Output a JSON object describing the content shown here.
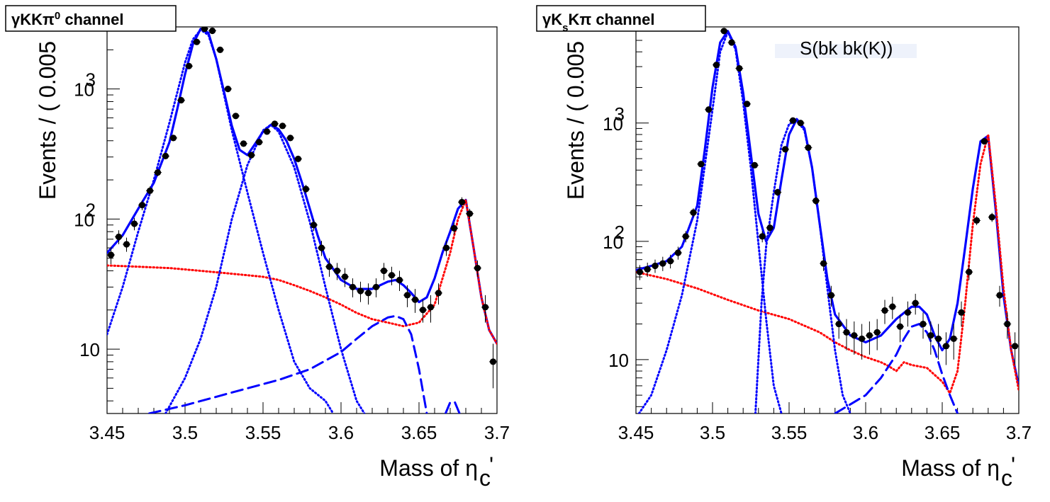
{
  "chart_data": [
    {
      "type": "scatter",
      "title": "γKKπ⁰ channel",
      "title_parts": {
        "prefix": "γKKπ",
        "sup": "0",
        "suffix": " channel"
      },
      "xlabel": "Mass of η",
      "xlabel_sub": "c",
      "xlabel_suffix": "'",
      "ylabel": "Events / ( 0.005",
      "x_ticks": [
        "3.45",
        "3.5",
        "3.55",
        "3.6",
        "3.65",
        "3.7"
      ],
      "y_ticks": [
        {
          "value": 10,
          "label": "10",
          "sup": ""
        },
        {
          "value": 100,
          "label": "10",
          "sup": "2"
        },
        {
          "value": 1000,
          "label": "10",
          "sup": "3"
        }
      ],
      "xlim": [
        3.45,
        3.7
      ],
      "ylim": [
        3.2,
        3000
      ],
      "log_y": true,
      "grid": false,
      "data": {
        "x": [
          3.4525,
          3.4575,
          3.4625,
          3.4675,
          3.4725,
          3.4775,
          3.4825,
          3.4875,
          3.4925,
          3.4975,
          3.5025,
          3.5075,
          3.5125,
          3.5175,
          3.5225,
          3.5275,
          3.5325,
          3.5375,
          3.5425,
          3.5475,
          3.5525,
          3.5575,
          3.5625,
          3.5675,
          3.5725,
          3.5775,
          3.5825,
          3.5875,
          3.5925,
          3.5975,
          3.6025,
          3.6075,
          3.6125,
          3.6175,
          3.6225,
          3.6275,
          3.6325,
          3.6375,
          3.6425,
          3.6475,
          3.6525,
          3.6575,
          3.6625,
          3.6675,
          3.6725,
          3.6775,
          3.6825,
          3.6875,
          3.6925,
          3.6975
        ],
        "y": [
          53,
          73,
          64,
          92,
          128,
          165,
          228,
          305,
          420,
          820,
          1500,
          2300,
          2900,
          2800,
          2000,
          1000,
          620,
          380,
          310,
          390,
          470,
          540,
          520,
          420,
          290,
          170,
          90,
          60,
          43,
          40,
          36,
          30,
          28,
          27,
          30,
          40,
          37,
          34,
          26,
          24,
          20,
          21,
          27,
          60,
          85,
          135,
          110,
          42,
          21,
          8
        ],
        "err": [
          8,
          9,
          8,
          10,
          11,
          13,
          15,
          17,
          20,
          28,
          38,
          48,
          54,
          53,
          45,
          32,
          25,
          19,
          18,
          20,
          22,
          23,
          23,
          20,
          17,
          13,
          9,
          8,
          7,
          6,
          6,
          5,
          5,
          5,
          5,
          6,
          6,
          6,
          5,
          5,
          4,
          5,
          5,
          8,
          9,
          12,
          10,
          6,
          5,
          3
        ]
      },
      "series": [
        {
          "style": "solid",
          "color": "#0000ff",
          "x": [
            3.45,
            3.46,
            3.47,
            3.48,
            3.49,
            3.495,
            3.5,
            3.505,
            3.51,
            3.515,
            3.52,
            3.525,
            3.53,
            3.535,
            3.54,
            3.545,
            3.55,
            3.555,
            3.56,
            3.565,
            3.57,
            3.575,
            3.58,
            3.585,
            3.59,
            3.6,
            3.61,
            3.62,
            3.63,
            3.635,
            3.64,
            3.645,
            3.65,
            3.655,
            3.66,
            3.665,
            3.67,
            3.675,
            3.68,
            3.685,
            3.69,
            3.695,
            3.7
          ],
          "y": [
            55,
            75,
            120,
            190,
            390,
            700,
            1300,
            2200,
            2900,
            2700,
            1700,
            950,
            520,
            340,
            310,
            380,
            470,
            530,
            490,
            400,
            290,
            190,
            120,
            75,
            50,
            34,
            29,
            29,
            33,
            34,
            31,
            27,
            23,
            25,
            35,
            55,
            80,
            120,
            140,
            60,
            25,
            14,
            11
          ]
        },
        {
          "style": "dotted",
          "color": "#ff0000",
          "x": [
            3.45,
            3.47,
            3.49,
            3.51,
            3.53,
            3.55,
            3.56,
            3.57,
            3.58,
            3.59,
            3.6,
            3.61,
            3.62,
            3.63,
            3.64,
            3.65,
            3.66,
            3.67,
            3.675,
            3.68,
            3.685,
            3.69,
            3.695,
            3.7
          ],
          "y": [
            44,
            43,
            42,
            40,
            38,
            36,
            34,
            31,
            28,
            25,
            22,
            19,
            17,
            16,
            15,
            16,
            22,
            55,
            100,
            140,
            60,
            25,
            14,
            11
          ]
        },
        {
          "style": "dotted",
          "color": "#0000ff",
          "x": [
            3.45,
            3.46,
            3.47,
            3.48,
            3.49,
            3.5,
            3.505,
            3.51,
            3.515,
            3.52,
            3.53,
            3.54,
            3.55,
            3.56,
            3.57,
            3.58,
            3.59,
            3.595
          ],
          "y": [
            13,
            30,
            80,
            200,
            550,
            1600,
            2400,
            2850,
            2600,
            1700,
            480,
            160,
            55,
            20,
            8,
            5,
            4,
            3.2
          ]
        },
        {
          "style": "dotted",
          "color": "#0000ff",
          "x": [
            3.4875,
            3.5,
            3.51,
            3.52,
            3.53,
            3.54,
            3.55,
            3.555,
            3.56,
            3.57,
            3.58,
            3.59,
            3.6,
            3.61,
            3.615
          ],
          "y": [
            3.2,
            6,
            12,
            30,
            100,
            260,
            480,
            530,
            470,
            250,
            95,
            30,
            10,
            4,
            3.2
          ]
        },
        {
          "style": "dashed",
          "color": "#0000ff",
          "x": [
            3.477,
            3.5,
            3.52,
            3.54,
            3.56,
            3.58,
            3.6,
            3.61,
            3.62,
            3.63,
            3.635,
            3.64,
            3.645,
            3.65,
            3.655
          ],
          "y": [
            3.2,
            3.7,
            4.3,
            5.0,
            5.8,
            7.0,
            9.5,
            12,
            15,
            17.5,
            18,
            17,
            13,
            7,
            3.2
          ]
        },
        {
          "style": "dashed",
          "color": "#0000ff",
          "x": [
            3.667,
            3.67,
            3.673,
            3.676
          ],
          "y": [
            3.2,
            3.9,
            3.9,
            3.2
          ]
        }
      ]
    },
    {
      "type": "scatter",
      "title": "γKsKπ channel",
      "title_parts": {
        "prefix": "γK",
        "sub": "s",
        "suffix": "Kπ channel"
      },
      "legend_faint": "S(bk bk(K))",
      "xlabel": "Mass of η",
      "xlabel_sub": "c",
      "xlabel_suffix": "'",
      "ylabel": "Events / ( 0.005",
      "x_ticks": [
        "3.45",
        "3.5",
        "3.55",
        "3.6",
        "3.65",
        "3.7"
      ],
      "y_ticks": [
        {
          "value": 10,
          "label": "10",
          "sup": ""
        },
        {
          "value": 100,
          "label": "10",
          "sup": "2"
        },
        {
          "value": 1000,
          "label": "10",
          "sup": "3"
        }
      ],
      "xlim": [
        3.45,
        3.7
      ],
      "ylim": [
        3.5,
        6500
      ],
      "log_y": true,
      "grid": false,
      "data": {
        "x": [
          3.4525,
          3.4575,
          3.4625,
          3.4675,
          3.4725,
          3.4775,
          3.4825,
          3.4875,
          3.4925,
          3.4975,
          3.5025,
          3.5075,
          3.5125,
          3.5175,
          3.5225,
          3.5275,
          3.5325,
          3.5375,
          3.5425,
          3.5475,
          3.5525,
          3.5575,
          3.5625,
          3.5675,
          3.5725,
          3.5775,
          3.5825,
          3.5875,
          3.5925,
          3.5975,
          3.6025,
          3.6075,
          3.6125,
          3.6175,
          3.6225,
          3.6275,
          3.6325,
          3.6375,
          3.6425,
          3.6475,
          3.6525,
          3.6575,
          3.6625,
          3.6675,
          3.6725,
          3.6775,
          3.6825,
          3.6875,
          3.6925,
          3.6975
        ],
        "y": [
          55,
          58,
          62,
          65,
          68,
          80,
          110,
          175,
          450,
          1300,
          3100,
          6000,
          4800,
          2900,
          1450,
          440,
          110,
          130,
          260,
          600,
          1050,
          1000,
          620,
          220,
          65,
          35,
          20,
          17,
          16,
          15,
          16,
          17,
          26,
          28,
          19,
          25,
          30,
          20,
          16,
          15,
          13,
          15,
          25,
          55,
          150,
          700,
          160,
          35,
          20,
          13
        ],
        "err": [
          8,
          8,
          8,
          9,
          9,
          10,
          12,
          15,
          24,
          41,
          63,
          85,
          78,
          60,
          43,
          24,
          12,
          13,
          18,
          27,
          36,
          35,
          28,
          17,
          9,
          7,
          5,
          5,
          5,
          5,
          5,
          5,
          6,
          6,
          5,
          6,
          6,
          5,
          5,
          5,
          4,
          5,
          6,
          8,
          13,
          30,
          14,
          7,
          5,
          4
        ]
      },
      "series": [
        {
          "style": "solid",
          "color": "#0000ff",
          "x": [
            3.45,
            3.46,
            3.47,
            3.48,
            3.49,
            3.495,
            3.5,
            3.505,
            3.51,
            3.515,
            3.52,
            3.525,
            3.53,
            3.535,
            3.54,
            3.545,
            3.55,
            3.555,
            3.56,
            3.565,
            3.57,
            3.575,
            3.58,
            3.59,
            3.6,
            3.61,
            3.62,
            3.63,
            3.635,
            3.64,
            3.645,
            3.65,
            3.655,
            3.66,
            3.665,
            3.67,
            3.675,
            3.68,
            3.685,
            3.69,
            3.695,
            3.7
          ],
          "y": [
            57,
            62,
            68,
            90,
            200,
            600,
            2000,
            4800,
            6000,
            4400,
            1800,
            550,
            170,
            100,
            130,
            330,
            800,
            1080,
            900,
            420,
            140,
            48,
            24,
            16,
            14,
            16,
            22,
            28,
            28,
            24,
            16,
            12,
            15,
            30,
            90,
            280,
            700,
            780,
            180,
            35,
            12,
            6
          ]
        },
        {
          "style": "dotted",
          "color": "#ff0000",
          "x": [
            3.45,
            3.47,
            3.49,
            3.51,
            3.53,
            3.55,
            3.57,
            3.58,
            3.59,
            3.6,
            3.61,
            3.615,
            3.62,
            3.625,
            3.63,
            3.64,
            3.65,
            3.655,
            3.66,
            3.665,
            3.67,
            3.675,
            3.68,
            3.685,
            3.69,
            3.695,
            3.7
          ],
          "y": [
            55,
            48,
            40,
            32,
            26,
            22,
            17,
            14,
            12,
            10.5,
            9.5,
            8.8,
            8,
            9.5,
            9,
            8.5,
            6.5,
            5.2,
            8,
            30,
            140,
            450,
            800,
            200,
            40,
            12,
            5.5
          ]
        },
        {
          "style": "dotted",
          "color": "#0000ff",
          "x": [
            3.452,
            3.46,
            3.47,
            3.48,
            3.49,
            3.5,
            3.505,
            3.51,
            3.515,
            3.52,
            3.525,
            3.53,
            3.535,
            3.54,
            3.545
          ],
          "y": [
            3.5,
            5,
            12,
            35,
            150,
            1300,
            4000,
            5900,
            4200,
            1500,
            420,
            95,
            22,
            6,
            3.5
          ]
        },
        {
          "style": "dotted",
          "color": "#0000ff",
          "x": [
            3.528,
            3.532,
            3.535,
            3.54,
            3.545,
            3.55,
            3.555,
            3.56,
            3.565,
            3.57,
            3.575,
            3.58,
            3.585,
            3.59
          ],
          "y": [
            3.5,
            30,
            90,
            260,
            650,
            980,
            1050,
            870,
            420,
            140,
            40,
            12,
            5,
            3.5
          ]
        },
        {
          "style": "dashed",
          "color": "#0000ff",
          "x": [
            3.58,
            3.6,
            3.61,
            3.62,
            3.625,
            3.63,
            3.635,
            3.64,
            3.645,
            3.65,
            3.655,
            3.66
          ],
          "y": [
            3.5,
            5,
            7,
            11,
            15,
            19,
            20,
            17,
            12,
            7.5,
            5,
            3.5
          ]
        }
      ]
    }
  ]
}
